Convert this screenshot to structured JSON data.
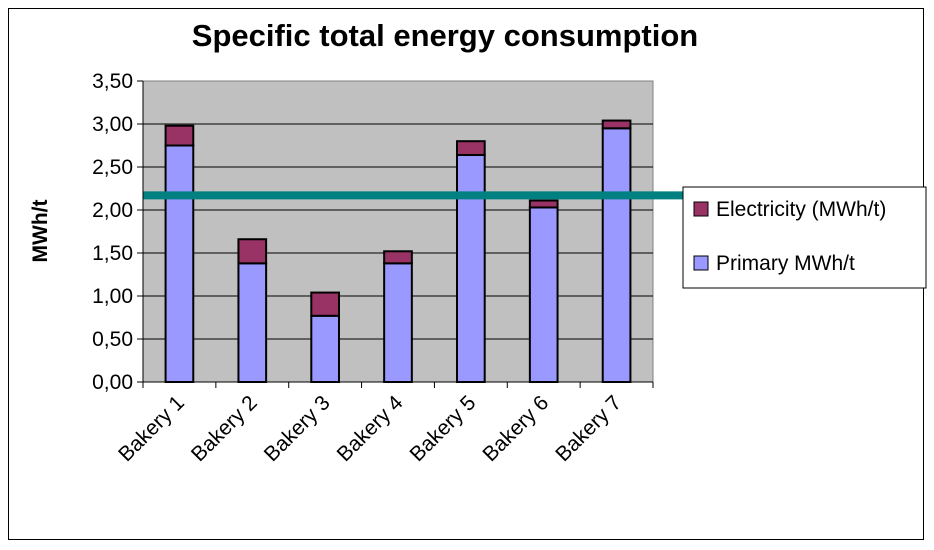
{
  "chart_data": {
    "type": "bar",
    "stacked": true,
    "title": "Specific total energy consumption",
    "xlabel": "",
    "ylabel": "MWh/t",
    "categories": [
      "Bakery 1",
      "Bakery 2",
      "Bakery 3",
      "Bakery 4",
      "Bakery 5",
      "Bakery 6",
      "Bakery 7"
    ],
    "series": [
      {
        "name": "Primary MWh/t",
        "color": "#9999ff",
        "values": [
          2.75,
          1.38,
          0.77,
          1.38,
          2.64,
          2.03,
          2.95
        ]
      },
      {
        "name": "Electricity (MWh/t)",
        "color": "#993366",
        "values": [
          0.23,
          0.28,
          0.27,
          0.14,
          0.16,
          0.08,
          0.09
        ]
      }
    ],
    "reference_line": {
      "value": 2.17,
      "color": "#008080"
    },
    "ylim": [
      0,
      3.5
    ],
    "yticks": [
      "0,00",
      "0,50",
      "1,00",
      "1,50",
      "2,00",
      "2,50",
      "3,00",
      "3,50"
    ],
    "grid": true,
    "plot_background": "#c0c0c0",
    "legend_position": "right"
  }
}
